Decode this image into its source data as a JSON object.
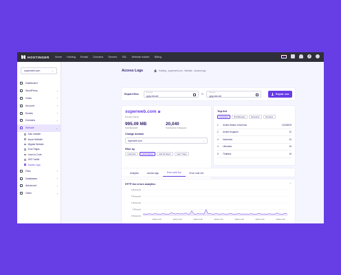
{
  "topbar": {
    "logo": "HOSTINGER",
    "nav": [
      "Home",
      "Hosting",
      "Emails",
      "Domains",
      "Servers",
      "SSL",
      "Website builder",
      "Billing"
    ],
    "icons": [
      "uk-flag-icon",
      "store-icon",
      "bell-icon",
      "help-icon",
      "user-icon"
    ]
  },
  "sidebar": {
    "site": "superweb.com",
    "items": [
      {
        "label": "Dashboard",
        "icon": "dashboard-icon",
        "arrow": false
      },
      {
        "label": "WordPress",
        "icon": "wordpress-icon",
        "arrow": true
      },
      {
        "label": "Order",
        "icon": "order-icon",
        "arrow": true
      },
      {
        "label": "Account",
        "icon": "account-icon",
        "arrow": true
      },
      {
        "label": "Emails",
        "icon": "email-icon",
        "arrow": true
      },
      {
        "label": "Domains",
        "icon": "globe-icon",
        "arrow": true
      },
      {
        "label": "Website",
        "icon": "website-icon",
        "arrow": true,
        "active": true
      }
    ],
    "sub_items": [
      "Auto Installer",
      "Import Website",
      "Migrate Website",
      "Error Pages",
      "Learn to Code",
      "SEO Toolkit",
      "Access Logs"
    ],
    "bottom_items": [
      {
        "label": "Files",
        "icon": "files-icon",
        "arrow": true
      },
      {
        "label": "Databases",
        "icon": "database-icon",
        "arrow": true
      },
      {
        "label": "Advanced",
        "icon": "advanced-icon",
        "arrow": true
      },
      {
        "label": "Other",
        "icon": "other-icon",
        "arrow": true
      }
    ]
  },
  "page": {
    "title": "Access Logs",
    "breadcrumb": "Hosting - superweb.com - Website - Access logs"
  },
  "export": {
    "label": "Export files",
    "from_caption": "Start date",
    "from_value": "yyyy-mm-dd",
    "to_label": "To",
    "to_caption": "End date",
    "to_value": "yyyy-mm-dd",
    "button": "Export .csv"
  },
  "domain": {
    "name": "superweb.com",
    "sub": "Domains Report",
    "bandwidth": "995.09 MB",
    "bandwidth_label": "Total Bandwidth",
    "requests": "20,040",
    "requests_label": "Total Number of Requests",
    "change_title": "Change domain",
    "selected": "superweb.com",
    "filter_title": "Filter by",
    "filters": [
      "Last Hour",
      "Last 6 Hours",
      "Last 24 Hours",
      "Last 7 days"
    ],
    "active_filter": 1
  },
  "toplist": {
    "title": "Top list",
    "tabs": [
      "Countries",
      "IP Addresses",
      "Resource",
      "Domains"
    ],
    "rows": [
      {
        "n": "1",
        "name": "United States of America",
        "value": "12345678"
      },
      {
        "n": "2",
        "name": "United Kingdom",
        "value": "22"
      },
      {
        "n": "3",
        "name": "Indonesia",
        "value": "24"
      },
      {
        "n": "4",
        "name": "Lithuania",
        "value": "16"
      },
      {
        "n": "5",
        "name": "Thailand",
        "value": "16"
      }
    ]
  },
  "tabs": [
    "Analytics",
    "Access logs",
    "Error code 3xx",
    "Error code 4xx"
  ],
  "active_tab": 2,
  "chart": {
    "title": "HTTP 3xx errors analytics"
  },
  "chart_data": {
    "type": "line",
    "title": "HTTP 3xx errors analytics",
    "y_ticks": [
      "4 Requests",
      "3 Requests",
      "2 Requests",
      "1 Request",
      "0 Requests"
    ],
    "x_ticks": [
      "2020-11-25",
      "2020-11-25",
      "2020-11-25",
      "2020-11-25",
      "2020-11-25",
      "2020-11-25",
      "2020-11-25"
    ],
    "ylim": [
      0,
      4
    ],
    "series": [
      {
        "values": [
          0.25,
          0.3,
          0.25,
          0.35,
          0.3,
          0.25,
          0.4,
          0.3,
          0.25,
          0.3,
          0.35,
          0.3,
          0.25,
          0.3,
          0.5,
          0.35,
          0.3,
          0.4,
          0.3,
          0.35,
          0.3,
          0.45,
          0.3,
          0.25,
          0.8,
          0.3,
          0.25,
          0.4,
          0.3,
          0.35,
          0.25,
          1.0,
          0.3,
          0.4,
          0.25,
          0.3,
          0.35,
          0.3,
          0.25,
          0.35,
          0.3,
          0.25,
          0.3,
          0.4,
          0.3,
          0.25,
          0.3,
          0.35,
          0.3,
          0.25,
          0.3,
          0.3,
          0.25,
          0.35,
          0.3,
          0.25,
          0.3,
          0.4,
          0.3,
          0.25,
          0.3,
          0.25,
          0.35,
          0.3,
          0.25,
          0.3,
          0.45,
          0.3,
          0.25,
          0.3,
          0.4,
          0.3
        ]
      }
    ],
    "color": "#673de6",
    "grid": true
  }
}
